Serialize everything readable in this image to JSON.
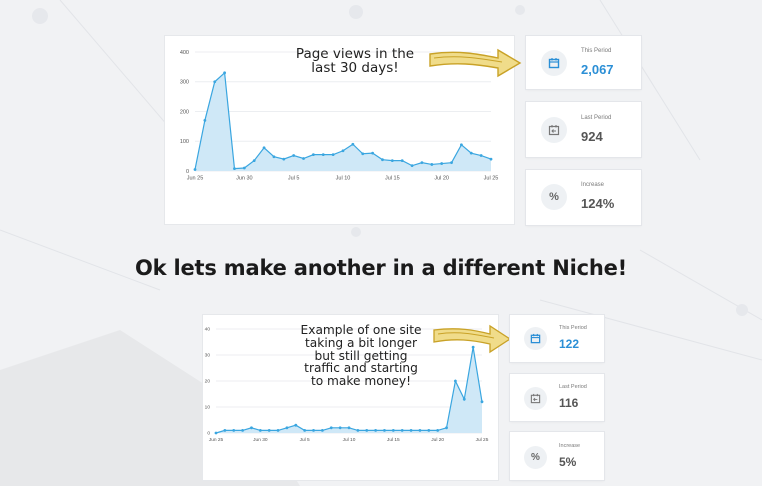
{
  "headline": "Ok lets make another in a different Niche!",
  "panels": [
    {
      "annotation": [
        "Page views in the",
        "last 30 days!"
      ],
      "chart_data": {
        "type": "area",
        "y_ticks": [
          0,
          100,
          200,
          300,
          400
        ],
        "ylim": [
          0,
          400
        ],
        "x_tick_labels": [
          "Jun 25",
          "Jun 30",
          "Jul 5",
          "Jul 10",
          "Jul 15",
          "Jul 20",
          "Jul 25"
        ],
        "x_tick_index": [
          0,
          5,
          10,
          15,
          20,
          25,
          30
        ],
        "values": [
          5,
          170,
          300,
          330,
          8,
          10,
          35,
          78,
          48,
          40,
          52,
          42,
          55,
          55,
          55,
          68,
          90,
          58,
          60,
          38,
          35,
          35,
          18,
          28,
          22,
          25,
          28,
          88,
          60,
          52,
          40
        ],
        "grid": true
      },
      "stats": [
        {
          "label": "This Period",
          "value": "2,067",
          "icon": "calendar-icon",
          "accent": true
        },
        {
          "label": "Last Period",
          "value": "924",
          "icon": "calendar-back-icon",
          "accent": false
        },
        {
          "label": "Increase",
          "value": "124%",
          "icon": "percent-icon",
          "accent": false
        }
      ]
    },
    {
      "annotation": [
        "Example of one site",
        "taking a bit longer",
        "but still getting",
        "traffic and starting",
        "to make money!"
      ],
      "chart_data": {
        "type": "area",
        "y_ticks": [
          0,
          10,
          20,
          30,
          40
        ],
        "ylim": [
          0,
          40
        ],
        "x_tick_labels": [
          "Jun 25",
          "Jun 30",
          "Jul 5",
          "Jul 10",
          "Jul 15",
          "Jul 20",
          "Jul 25"
        ],
        "x_tick_index": [
          0,
          5,
          10,
          15,
          20,
          25,
          30
        ],
        "values": [
          0,
          1,
          1,
          1,
          2,
          1,
          1,
          1,
          2,
          3,
          1,
          1,
          1,
          2,
          2,
          2,
          1,
          1,
          1,
          1,
          1,
          1,
          1,
          1,
          1,
          1,
          2,
          20,
          13,
          33,
          12
        ],
        "grid": true
      },
      "stats": [
        {
          "label": "This Period",
          "value": "122",
          "icon": "calendar-icon",
          "accent": true
        },
        {
          "label": "Last Period",
          "value": "116",
          "icon": "calendar-back-icon",
          "accent": false
        },
        {
          "label": "Increase",
          "value": "5%",
          "icon": "percent-icon",
          "accent": false
        }
      ]
    }
  ],
  "colors": {
    "line": "#3aa6e0",
    "fill": "#cfe8f7",
    "accent_value": "#2b8fd6",
    "arrow": "#c9a227"
  }
}
